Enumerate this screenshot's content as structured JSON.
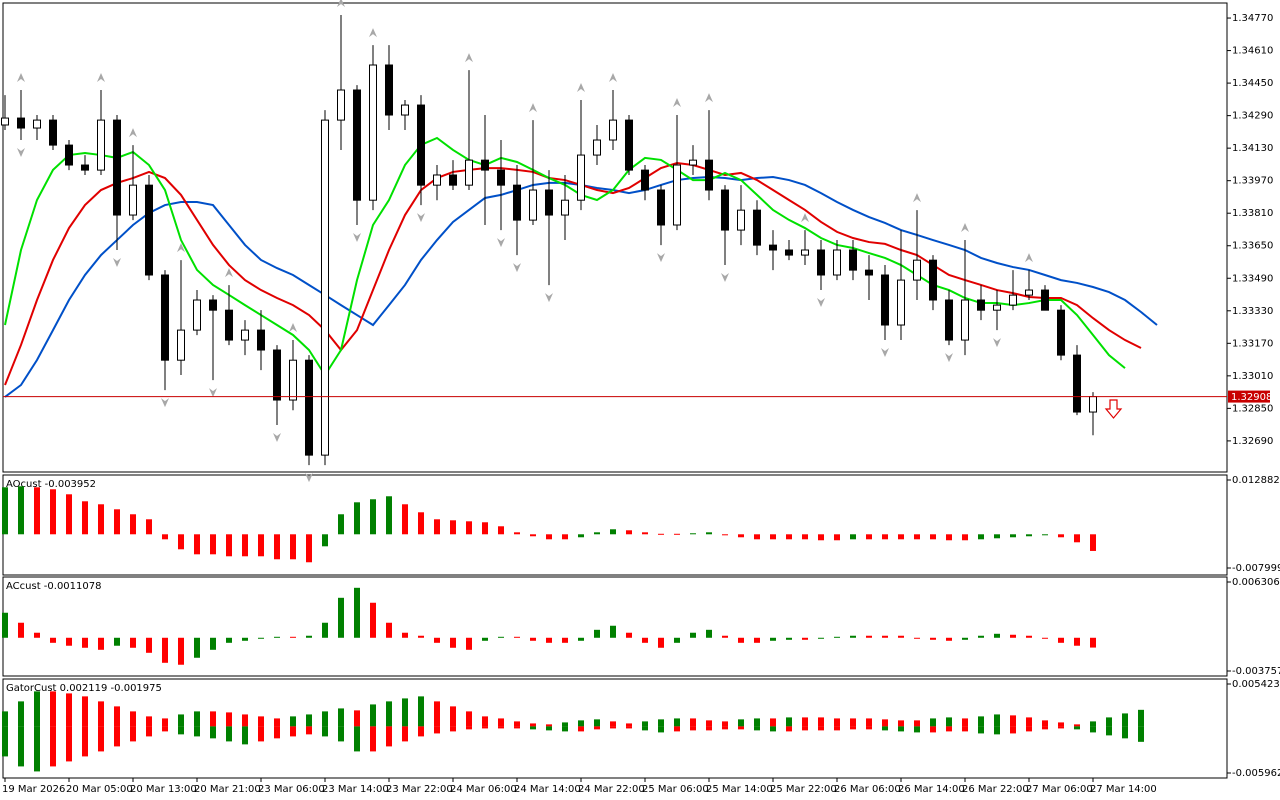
{
  "chart_data": [
    {
      "type": "candlestick",
      "categories": [
        "19 Mar 2026",
        null,
        null,
        null,
        "20 Mar 05:00",
        null,
        null,
        null,
        "20 Mar 13:00",
        null,
        null,
        null,
        "20 Mar 21:00",
        null,
        null,
        null,
        "23 Mar 06:00",
        null,
        null,
        null,
        "23 Mar 14:00",
        null,
        null,
        null,
        "23 Mar 22:00",
        null,
        null,
        null,
        "24 Mar 06:00",
        null,
        null,
        null,
        "24 Mar 14:00",
        null,
        null,
        null,
        "24 Mar 22:00",
        null,
        null,
        null,
        "25 Mar 06:00",
        null,
        null,
        null,
        "25 Mar 14:00",
        null,
        null,
        null,
        "25 Mar 22:00",
        null,
        null,
        null,
        "26 Mar 06:00",
        null,
        null,
        null,
        "26 Mar 14:00",
        null,
        null,
        null,
        "26 Mar 22:00",
        null,
        null,
        null,
        "27 Mar 06:00",
        null,
        null,
        null,
        "27 Mar 14:00",
        null,
        null,
        null,
        null
      ],
      "open": [
        1.34244,
        1.34278,
        1.34229,
        1.34268,
        1.34145,
        1.34047,
        1.34022,
        1.34268,
        1.33801,
        1.33948,
        1.33506,
        1.33087,
        1.33235,
        1.33383,
        1.33333,
        1.33186,
        1.33235,
        1.33137,
        1.32891,
        1.33087,
        1.3262,
        1.34268,
        1.34416,
        1.33874,
        1.34539,
        1.34293,
        1.34342,
        1.33948,
        1.33998,
        1.33948,
        1.34071,
        1.34022,
        1.33948,
        1.33776,
        1.33924,
        1.33801,
        1.33874,
        1.34096,
        1.3417,
        1.34268,
        1.34022,
        1.33924,
        1.33752,
        1.34047,
        1.34071,
        1.33924,
        1.33727,
        1.33825,
        1.33653,
        1.33629,
        1.33604,
        1.33629,
        1.33506,
        1.33629,
        1.3353,
        1.33506,
        1.3326,
        1.33481,
        1.33579,
        1.33383,
        1.33186,
        1.33383,
        1.33333,
        1.33358,
        1.33407,
        1.33432,
        1.33333,
        1.33112,
        1.32832,
        null,
        null,
        null,
        null
      ],
      "high": [
        1.34391,
        1.34416,
        1.34293,
        1.34293,
        1.3417,
        1.34096,
        1.34416,
        1.34293,
        1.34145,
        1.33998,
        1.3353,
        1.33579,
        1.33432,
        1.33407,
        1.33456,
        1.33284,
        1.33333,
        1.33161,
        1.33186,
        1.33112,
        1.34317,
        1.34785,
        1.3444,
        1.34637,
        1.34637,
        1.34367,
        1.34391,
        1.34047,
        1.34071,
        1.34514,
        1.34293,
        1.3417,
        1.34047,
        1.34268,
        1.34022,
        1.33998,
        1.34367,
        1.34244,
        1.34416,
        1.34293,
        1.34047,
        1.33948,
        1.34293,
        1.34145,
        1.34317,
        1.33948,
        1.33948,
        1.33874,
        1.33727,
        1.33678,
        1.33727,
        1.33678,
        1.33678,
        1.33678,
        1.33604,
        1.33555,
        1.33727,
        1.33825,
        1.33604,
        1.33432,
        1.33678,
        1.33456,
        1.33432,
        1.3353,
        1.3353,
        1.33456,
        1.33358,
        1.33161,
        1.3293,
        null,
        null,
        null,
        null
      ],
      "low": [
        1.34219,
        1.3417,
        1.3417,
        1.34121,
        1.34022,
        1.33998,
        1.33998,
        1.33629,
        1.33776,
        1.33481,
        1.3294,
        1.33014,
        1.3321,
        1.32989,
        1.33161,
        1.33112,
        1.33038,
        1.32768,
        1.32841,
        1.32571,
        1.32571,
        1.34121,
        1.33752,
        1.33825,
        1.34219,
        1.34219,
        1.3385,
        1.33874,
        1.33924,
        1.33924,
        1.33752,
        1.33727,
        1.33604,
        1.33752,
        1.33456,
        1.33678,
        1.33825,
        1.34047,
        1.34121,
        1.33998,
        1.33874,
        1.33653,
        1.33727,
        1.33998,
        1.33874,
        1.33555,
        1.33653,
        1.33604,
        1.3353,
        1.33579,
        1.33555,
        1.33432,
        1.33481,
        1.33481,
        1.33383,
        1.33186,
        1.33186,
        1.33383,
        1.33333,
        1.33161,
        1.33112,
        1.33284,
        1.33235,
        1.33333,
        1.33383,
        1.33333,
        1.33087,
        1.32817,
        1.32718,
        null,
        null,
        null,
        null
      ],
      "close": [
        1.34278,
        1.34229,
        1.34268,
        1.34145,
        1.34047,
        1.34022,
        1.34268,
        1.33801,
        1.33948,
        1.33506,
        1.33087,
        1.33235,
        1.33383,
        1.33333,
        1.33186,
        1.33235,
        1.33137,
        1.32891,
        1.33087,
        1.3262,
        1.34268,
        1.34416,
        1.33874,
        1.34539,
        1.34293,
        1.34342,
        1.33948,
        1.33998,
        1.33948,
        1.34071,
        1.34022,
        1.33948,
        1.33776,
        1.33924,
        1.33801,
        1.33874,
        1.34096,
        1.3417,
        1.34268,
        1.34022,
        1.33924,
        1.33752,
        1.34047,
        1.34071,
        1.33924,
        1.33727,
        1.33825,
        1.33653,
        1.33629,
        1.33604,
        1.33629,
        1.33506,
        1.33629,
        1.3353,
        1.33506,
        1.3326,
        1.33481,
        1.33579,
        1.33383,
        1.33186,
        1.33383,
        1.33333,
        1.33358,
        1.33407,
        1.33432,
        1.33333,
        1.33112,
        1.32832,
        1.32908,
        null,
        null,
        null,
        null
      ],
      "bull_color": "#ffffff",
      "bear_color": "#000000",
      "series": [
        {
          "color": "#0050c8",
          "values": [
            1.32906,
            1.32965,
            1.33088,
            1.33235,
            1.33383,
            1.33506,
            1.33604,
            1.33678,
            1.33752,
            1.33811,
            1.3385,
            1.33865,
            1.33865,
            1.3385,
            1.33752,
            1.33654,
            1.3358,
            1.3354,
            1.33506,
            1.33457,
            1.33408,
            1.33358,
            1.33309,
            1.3326,
            1.33358,
            1.33457,
            1.3358,
            1.33678,
            1.33767,
            1.33826,
            1.33885,
            1.339,
            1.33924,
            1.33949,
            1.33959,
            1.33959,
            1.33949,
            1.33934,
            1.33924,
            1.33909,
            1.33924,
            1.33949,
            1.33973,
            1.33983,
            1.33988,
            1.33983,
            1.33973,
            1.33983,
            1.33988,
            1.33973,
            1.33949,
            1.33909,
            1.33865,
            1.33826,
            1.33791,
            1.33762,
            1.33727,
            1.33703,
            1.33678,
            1.33654,
            1.33629,
            1.3359,
            1.33565,
            1.33545,
            1.33531,
            1.33506,
            1.33481,
            1.33467,
            1.33447,
            1.33422,
            1.33383,
            1.33324,
            1.3326
          ]
        },
        {
          "color": "#e00000",
          "values": [
            1.32965,
            1.33162,
            1.33383,
            1.3358,
            1.33737,
            1.3385,
            1.33924,
            1.33959,
            1.33983,
            1.34013,
            1.33983,
            1.339,
            1.33777,
            1.33654,
            1.33555,
            1.33481,
            1.33432,
            1.33393,
            1.33358,
            1.33309,
            1.33235,
            1.33137,
            1.33235,
            1.33432,
            1.33629,
            1.33801,
            1.33924,
            1.33983,
            1.34013,
            1.34023,
            1.34032,
            1.34032,
            1.34023,
            1.34013,
            1.33983,
            1.33973,
            1.33949,
            1.33924,
            1.33909,
            1.33934,
            1.33983,
            1.34032,
            1.34057,
            1.34047,
            1.34023,
            1.33998,
            1.34008,
            1.33973,
            1.33924,
            1.33875,
            1.33826,
            1.33767,
            1.33718,
            1.33688,
            1.33668,
            1.33659,
            1.33629,
            1.33604,
            1.33555,
            1.33506,
            1.33481,
            1.33457,
            1.33432,
            1.33417,
            1.33398,
            1.33393,
            1.33393,
            1.33358,
            1.33294,
            1.33235,
            1.33186,
            1.33147,
            null
          ]
        },
        {
          "color": "#00e000",
          "values": [
            1.3326,
            1.33629,
            1.33875,
            1.34023,
            1.34096,
            1.34106,
            1.34096,
            1.34082,
            1.34111,
            1.34047,
            1.33924,
            1.33678,
            1.33531,
            1.33457,
            1.33408,
            1.33358,
            1.33309,
            1.3326,
            1.33211,
            1.33137,
            1.33014,
            1.33137,
            1.33481,
            1.33752,
            1.33875,
            1.34047,
            1.34146,
            1.3418,
            1.34121,
            1.34072,
            1.34047,
            1.34082,
            1.34062,
            1.34023,
            1.33983,
            1.33949,
            1.339,
            1.33875,
            1.33924,
            1.34023,
            1.34082,
            1.34072,
            1.34023,
            1.33973,
            1.33973,
            1.34008,
            1.33973,
            1.339,
            1.33826,
            1.33777,
            1.33737,
            1.33688,
            1.33654,
            1.33639,
            1.33614,
            1.3359,
            1.33555,
            1.33506,
            1.33457,
            1.33432,
            1.33393,
            1.33368,
            1.33368,
            1.33358,
            1.33368,
            1.33383,
            1.33383,
            1.33309,
            1.33211,
            1.33112,
            1.33048,
            null,
            null
          ]
        }
      ],
      "fractals_up": [
        1,
        6,
        8,
        11,
        14,
        18,
        21,
        23,
        29,
        33,
        36,
        38,
        42,
        44,
        50,
        57,
        60,
        64
      ],
      "fractals_down": [
        1,
        7,
        10,
        13,
        17,
        19,
        22,
        26,
        31,
        32,
        34,
        41,
        45,
        51,
        55,
        59,
        62
      ],
      "fractal_color": "#a8a8a8",
      "current_price": 1.32908,
      "current_price_color": "#c80000",
      "ylim": [
        1.32537,
        1.34844
      ],
      "yticks": [
        {
          "value": 1.3477,
          "label": "1.34770"
        },
        {
          "value": 1.3461,
          "label": "1.34610"
        },
        {
          "value": 1.3445,
          "label": "1.34450"
        },
        {
          "value": 1.3429,
          "label": "1.34290"
        },
        {
          "value": 1.3413,
          "label": "1.34130"
        },
        {
          "value": 1.3397,
          "label": "1.33970"
        },
        {
          "value": 1.3381,
          "label": "1.33810"
        },
        {
          "value": 1.3365,
          "label": "1.33650"
        },
        {
          "value": 1.3349,
          "label": "1.33490"
        },
        {
          "value": 1.3333,
          "label": "1.33330"
        },
        {
          "value": 1.3317,
          "label": "1.33170"
        },
        {
          "value": 1.3301,
          "label": "1.33010"
        },
        {
          "value": 1.3285,
          "label": "1.32850"
        },
        {
          "value": 1.3269,
          "label": "1.32690"
        }
      ]
    },
    {
      "type": "histogram",
      "title": "AOcust -0.003952",
      "up_color": "#008000",
      "down_color": "#ff0000",
      "values": [
        0.01115,
        0.01139,
        0.01115,
        0.01068,
        0.00949,
        0.00783,
        0.00712,
        0.00593,
        0.00475,
        0.00356,
        -0.00119,
        -0.00356,
        -0.00475,
        -0.00475,
        -0.00522,
        -0.00522,
        -0.00522,
        -0.00593,
        -0.00593,
        -0.00664,
        -0.00285,
        0.00475,
        0.00759,
        0.00831,
        0.00902,
        0.00712,
        0.00522,
        0.00356,
        0.00332,
        0.00308,
        0.00285,
        0.0019,
        0.00047,
        -0.00047,
        -0.00119,
        -0.00119,
        -0.00071,
        0.00047,
        0.00119,
        0.00095,
        0.00047,
        0.00012,
        0.00012,
        0.00024,
        0.00047,
        -0.00024,
        -0.00071,
        -0.00119,
        -0.00119,
        -0.00119,
        -0.00119,
        -0.00142,
        -0.00142,
        -0.00119,
        -0.00119,
        -0.00119,
        -0.00119,
        -0.00119,
        -0.00119,
        -0.00142,
        -0.00142,
        -0.00119,
        -0.00095,
        -0.00071,
        -0.00047,
        -0.00012,
        -0.00071,
        -0.0019,
        -0.003952,
        null,
        null,
        null,
        null
      ],
      "ylim": [
        -0.007999,
        0.012882
      ],
      "yticks": [
        0.012882,
        -0.007999
      ]
    },
    {
      "type": "histogram",
      "title": "ACcust -0.0011078",
      "up_color": "#008000",
      "down_color": "#ff0000",
      "values": [
        0.00283,
        0.0017,
        0.00057,
        -0.00057,
        -0.0009,
        -0.00113,
        -0.00136,
        -0.0009,
        -0.00113,
        -0.0017,
        -0.00283,
        -0.00305,
        -0.00226,
        -0.00136,
        -0.00057,
        -0.00034,
        -0.00011,
        0.00011,
        0.00011,
        0.00023,
        0.0017,
        0.00452,
        0.00565,
        0.00396,
        0.0017,
        0.00057,
        0.00023,
        -0.00057,
        -0.00113,
        -0.00136,
        -0.00034,
        0.00011,
        0.00011,
        -0.00034,
        -0.00057,
        -0.00057,
        -0.00034,
        0.0009,
        0.00136,
        0.00057,
        -0.00057,
        -0.00113,
        -0.00057,
        0.00057,
        0.0009,
        0.00023,
        -0.00057,
        -0.00057,
        -0.00034,
        -0.00023,
        -0.00023,
        -0.00011,
        0.00011,
        0.00023,
        0.00023,
        0.00023,
        0.00023,
        -0.00011,
        -0.00023,
        -0.00034,
        -0.00023,
        0.00023,
        0.00045,
        0.00034,
        0.00023,
        -0.00011,
        -0.00057,
        -0.0009,
        -0.0011078,
        null,
        null,
        null,
        null
      ],
      "ylim": [
        -0.0037574,
        0.0063064
      ],
      "yticks": [
        0.0063064,
        -0.0037574
      ]
    },
    {
      "type": "gator",
      "title": "GatorCust 0.002119 -0.001975",
      "up_color": "#008000",
      "down_color": "#ff0000",
      "series": [
        {
          "values": [
            0.00192,
            0.0032,
            0.00448,
            0.00448,
            0.00422,
            0.00384,
            0.0032,
            0.00256,
            0.00192,
            0.00128,
            0.00102,
            0.00153,
            0.00192,
            0.00192,
            0.00179,
            0.00153,
            0.00128,
            0.00102,
            0.00128,
            0.00153,
            0.00192,
            0.0023,
            0.00205,
            0.00281,
            0.0032,
            0.00358,
            0.00384,
            0.0032,
            0.00256,
            0.00192,
            0.00128,
            0.00102,
            0.00064,
            0.00038,
            0.00026,
            0.00051,
            0.00077,
            0.0009,
            0.00064,
            0.00038,
            0.00064,
            0.0009,
            0.00102,
            0.00102,
            0.00077,
            0.00064,
            0.0009,
            0.00102,
            0.00102,
            0.00115,
            0.00115,
            0.00115,
            0.00102,
            0.00102,
            0.00102,
            0.0009,
            0.00077,
            0.00077,
            0.00102,
            0.00115,
            0.00102,
            0.00128,
            0.00153,
            0.00141,
            0.00115,
            0.00077,
            0.00051,
            0.00026,
            0.00064,
            0.00115,
            0.00166,
            0.002119,
            null
          ]
        },
        {
          "values": [
            -0.00384,
            -0.00512,
            -0.00576,
            -0.00512,
            -0.00448,
            -0.00384,
            -0.0032,
            -0.00256,
            -0.00192,
            -0.00128,
            -0.00064,
            -0.00102,
            -0.00128,
            -0.00153,
            -0.00192,
            -0.0023,
            -0.00192,
            -0.00153,
            -0.00128,
            -0.00102,
            -0.00128,
            -0.00192,
            -0.0032,
            -0.0032,
            -0.00256,
            -0.00192,
            -0.00128,
            -0.0009,
            -0.00064,
            -0.00038,
            -0.00026,
            -0.00026,
            -0.00026,
            -0.00038,
            -0.00051,
            -0.00064,
            -0.00064,
            -0.00038,
            -0.00026,
            -0.00026,
            -0.00051,
            -0.00077,
            -0.00064,
            -0.00051,
            -0.00051,
            -0.00038,
            -0.00038,
            -0.00051,
            -0.00064,
            -0.00064,
            -0.00051,
            -0.00051,
            -0.00051,
            -0.00038,
            -0.00038,
            -0.00051,
            -0.00064,
            -0.00077,
            -0.00077,
            -0.00064,
            -0.00064,
            -0.0009,
            -0.00102,
            -0.0009,
            -0.00064,
            -0.00038,
            -0.00026,
            -0.00038,
            -0.00077,
            -0.00115,
            -0.00153,
            -0.001975,
            null
          ]
        }
      ],
      "ylim": [
        -0.005962,
        0.005423
      ],
      "yticks": [
        0.005423,
        -0.005962
      ]
    }
  ]
}
